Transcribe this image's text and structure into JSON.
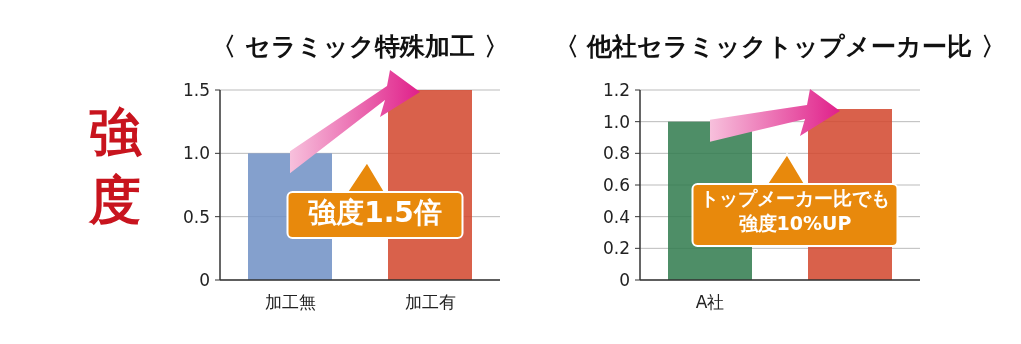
{
  "chart_data": [
    {
      "type": "other",
      "annotations": [
        "強度"
      ]
    },
    {
      "type": "bar",
      "title": "〈 セラミック特殊加工 〉",
      "categories": [
        "加工無",
        "加工有"
      ],
      "values": [
        1.0,
        1.5
      ],
      "colors": [
        "#6f8fc4",
        "#d2452c"
      ],
      "ylim": [
        0,
        1.5
      ],
      "yticks": [
        0,
        0.5,
        {
          "value": 1,
          "label": "1.0"
        },
        1.5
      ],
      "grid": "y",
      "annotations": [
        "強度1.5倍"
      ]
    },
    {
      "type": "bar",
      "title": "〈 他社セラミックトップメーカー比 〉",
      "categories": [
        "A社",
        null
      ],
      "values": [
        1.0,
        1.08
      ],
      "colors": [
        "#2f7a4c",
        "#d2452c"
      ],
      "ylim": [
        0,
        1.2
      ],
      "yticks": [
        0,
        0.2,
        0.4,
        0.6,
        0.8,
        {
          "value": 1,
          "label": "1.0"
        },
        1.2
      ],
      "grid": "y",
      "annotations": [
        "トップメーカー比でも",
        "強度10%UP"
      ]
    }
  ]
}
